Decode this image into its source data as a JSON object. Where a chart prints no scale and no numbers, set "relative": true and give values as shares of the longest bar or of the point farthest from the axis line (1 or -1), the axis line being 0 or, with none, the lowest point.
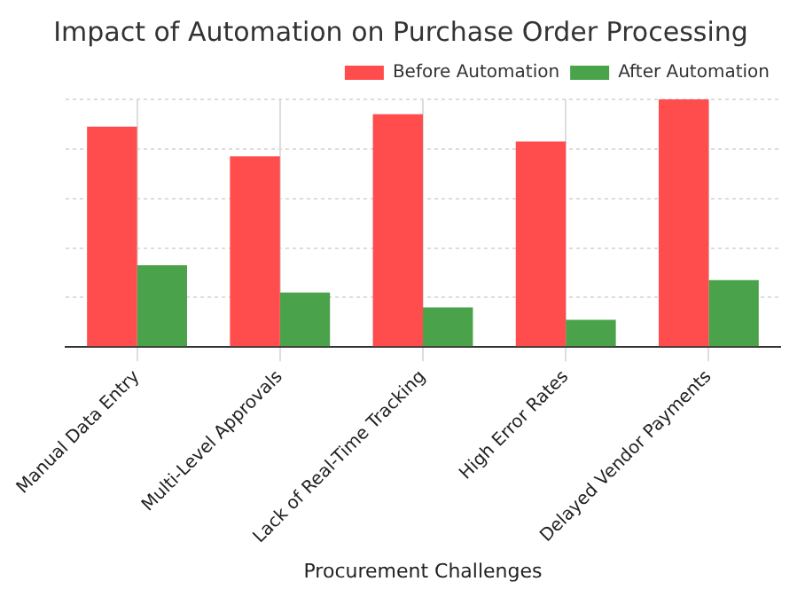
{
  "chart_data": {
    "type": "bar",
    "title": "Impact of Automation on Purchase Order Processing",
    "xlabel": "Procurement Challenges",
    "categories": [
      "Manual Data Entry",
      "Multi-Level Approvals",
      "Lack of Real-Time Tracking",
      "High Error Rates",
      "Delayed Vendor Payments"
    ],
    "relative": true,
    "grid": true,
    "legend": "top right",
    "series": [
      {
        "name": "Before Automation",
        "color": "#ff4c4c",
        "values": [
          0.89,
          0.77,
          0.94,
          0.83,
          1
        ]
      },
      {
        "name": "After Automation",
        "color": "#4aa34a",
        "values": [
          0.33,
          0.22,
          0.16,
          0.11,
          0.27
        ]
      }
    ]
  }
}
